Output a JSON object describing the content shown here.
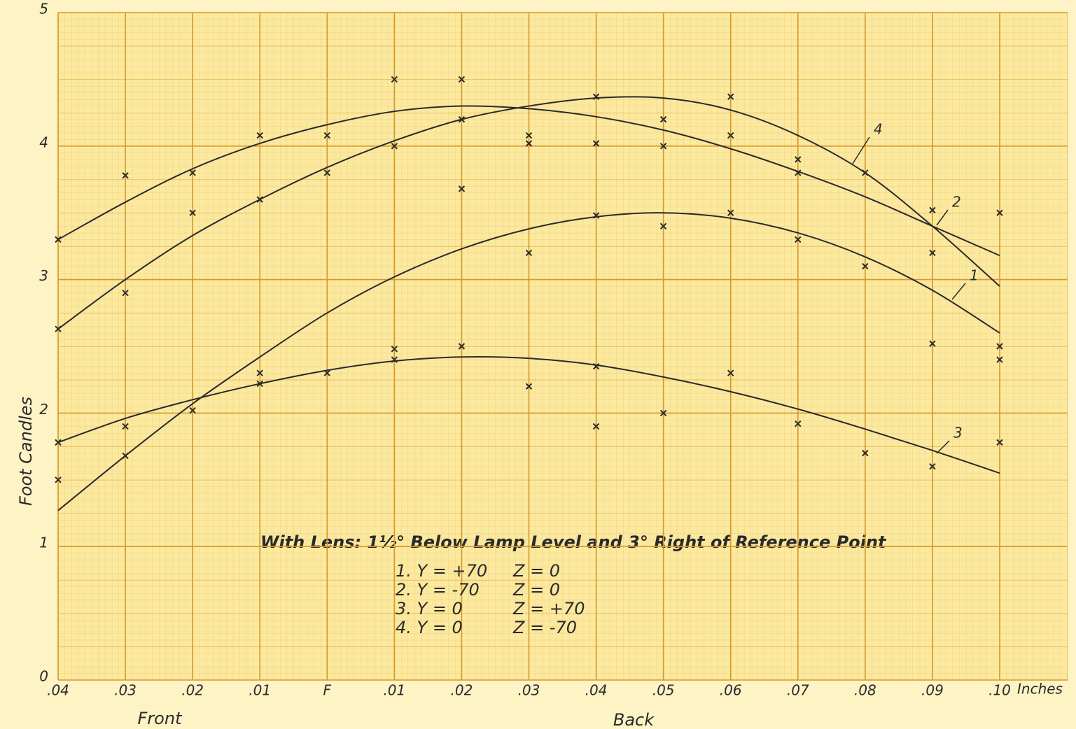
{
  "chart_data": {
    "type": "line",
    "y_label": "Foot Candles",
    "x_label": "Inches",
    "front_label": "Front",
    "back_label": "Back",
    "categories": [
      ".04",
      ".03",
      ".02",
      ".01",
      "F",
      ".01",
      ".02",
      ".03",
      ".04",
      ".05",
      ".06",
      ".07",
      ".08",
      ".09",
      ".10"
    ],
    "ylim": [
      0,
      5
    ],
    "yticks": [
      0,
      1,
      2,
      3,
      4,
      5
    ],
    "color": "#2a2a2a",
    "series": [
      {
        "name": "1",
        "values": [
          1.27,
          1.68,
          2.07,
          2.42,
          2.75,
          3.02,
          3.23,
          3.38,
          3.47,
          3.5,
          3.46,
          3.35,
          3.17,
          2.92,
          2.6
        ]
      },
      {
        "name": "2",
        "values": [
          3.3,
          3.58,
          3.83,
          4.02,
          4.16,
          4.26,
          4.3,
          4.28,
          4.22,
          4.12,
          3.98,
          3.81,
          3.62,
          3.4,
          3.18
        ]
      },
      {
        "name": "3",
        "values": [
          1.78,
          1.96,
          2.1,
          2.22,
          2.32,
          2.39,
          2.42,
          2.41,
          2.36,
          2.27,
          2.16,
          2.03,
          1.88,
          1.72,
          1.55
        ]
      },
      {
        "name": "4",
        "values": [
          2.63,
          3.0,
          3.33,
          3.6,
          3.84,
          4.04,
          4.2,
          4.3,
          4.36,
          4.36,
          4.27,
          4.08,
          3.8,
          3.4,
          2.95
        ]
      }
    ],
    "points": [
      [
        3.3,
        3.78,
        3.8,
        4.08,
        4.08,
        4.5,
        4.5,
        4.08,
        4.37,
        4.2,
        4.37,
        3.9,
        3.8,
        3.52,
        3.5
      ],
      [
        2.63,
        2.9,
        3.5,
        3.6,
        3.8,
        4.0,
        4.2,
        4.02,
        4.02,
        4.0,
        4.08,
        3.8,
        3.1,
        3.2,
        2.5
      ],
      [
        1.78,
        1.9,
        2.02,
        2.3,
        2.3,
        2.48,
        3.68,
        3.2,
        3.48,
        3.4,
        3.5,
        3.3,
        1.7,
        2.52,
        2.4
      ],
      [
        1.5,
        1.68,
        null,
        2.22,
        null,
        2.4,
        2.5,
        2.2,
        2.35,
        2.0,
        2.3,
        1.92,
        null,
        1.6,
        1.78
      ],
      [
        null,
        null,
        null,
        null,
        null,
        null,
        null,
        null,
        1.9,
        null,
        null,
        null,
        null,
        null,
        null
      ]
    ],
    "note": {
      "title": "With Lens: 1½° Below Lamp Level and 3° Right of Reference Point",
      "rows": [
        [
          "1.  Y = +70",
          "Z = 0"
        ],
        [
          "2.  Y = -70",
          "Z = 0"
        ],
        [
          "3.  Y = 0",
          "Z = +70"
        ],
        [
          "4.  Y = 0",
          "Z = -70"
        ]
      ]
    }
  }
}
